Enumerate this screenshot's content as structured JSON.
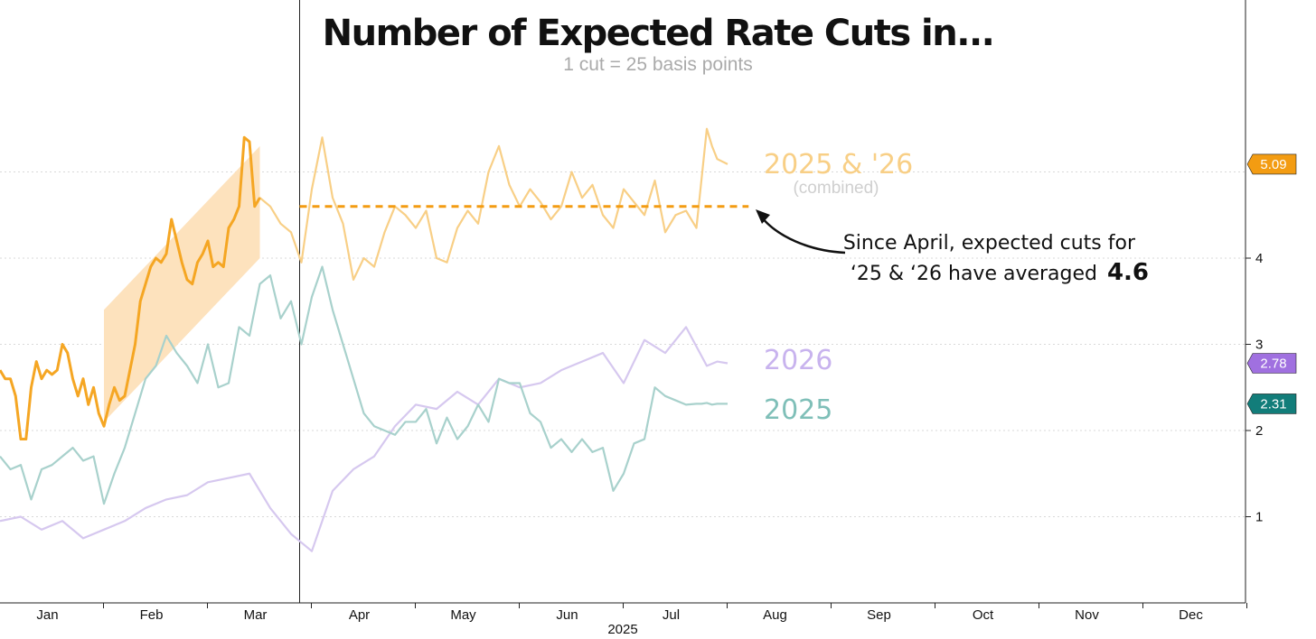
{
  "chart_data": {
    "type": "line",
    "title": "Number of Expected Rate Cuts in...",
    "subtitle": "1 cut = 25 basis points",
    "year_label": "2025",
    "months": [
      "Jan",
      "Feb",
      "Mar",
      "Apr",
      "May",
      "Jun",
      "Jul",
      "Aug",
      "Sep",
      "Oct",
      "Nov",
      "Dec"
    ],
    "y_ticks": [
      1,
      2,
      3,
      4
    ],
    "ylim": [
      0,
      7
    ],
    "xlim": [
      0,
      12
    ],
    "highlight_end": 2.5,
    "average_line": {
      "value": 4.6,
      "x_start": 2.5,
      "x_end": 6.75
    },
    "band": {
      "x_start": 1.0,
      "x_end": 2.5,
      "y_low_start": 2.1,
      "y_high_start": 3.4,
      "y_low_end": 4.0,
      "y_high_end": 5.3
    },
    "series": [
      {
        "name": "2025 & '26",
        "sublabel": "(combined)",
        "color": "#f5a623",
        "last_value": "5.09",
        "x": [
          0.0,
          0.05,
          0.1,
          0.15,
          0.2,
          0.25,
          0.3,
          0.35,
          0.4,
          0.45,
          0.5,
          0.55,
          0.6,
          0.65,
          0.7,
          0.75,
          0.8,
          0.85,
          0.9,
          0.95,
          1.0,
          1.05,
          1.1,
          1.15,
          1.2,
          1.25,
          1.3,
          1.35,
          1.4,
          1.45,
          1.5,
          1.55,
          1.6,
          1.65,
          1.7,
          1.75,
          1.8,
          1.85,
          1.9,
          1.95,
          2.0,
          2.05,
          2.1,
          2.15,
          2.2,
          2.25,
          2.3,
          2.35,
          2.4,
          2.45,
          2.5,
          2.6,
          2.7,
          2.8,
          2.9,
          3.0,
          3.1,
          3.2,
          3.3,
          3.4,
          3.5,
          3.6,
          3.7,
          3.8,
          3.9,
          4.0,
          4.1,
          4.2,
          4.3,
          4.4,
          4.5,
          4.6,
          4.7,
          4.8,
          4.9,
          5.0,
          5.1,
          5.2,
          5.3,
          5.4,
          5.5,
          5.6,
          5.7,
          5.8,
          5.9,
          6.0,
          6.1,
          6.2,
          6.3,
          6.4,
          6.5,
          6.6,
          6.7,
          6.8,
          6.85,
          6.9,
          7.0
        ],
        "values": [
          2.7,
          2.6,
          2.6,
          2.4,
          1.9,
          1.9,
          2.5,
          2.8,
          2.6,
          2.7,
          2.65,
          2.7,
          3.0,
          2.9,
          2.6,
          2.4,
          2.6,
          2.3,
          2.5,
          2.2,
          2.05,
          2.3,
          2.5,
          2.35,
          2.4,
          2.7,
          3.0,
          3.5,
          3.7,
          3.9,
          4.0,
          3.95,
          4.05,
          4.45,
          4.2,
          3.95,
          3.75,
          3.7,
          3.95,
          4.05,
          4.2,
          3.9,
          3.95,
          3.9,
          4.35,
          4.45,
          4.6,
          5.4,
          5.35,
          4.6,
          4.7,
          4.6,
          4.4,
          4.3,
          3.95,
          4.8,
          5.4,
          4.7,
          4.4,
          3.75,
          4.0,
          3.9,
          4.3,
          4.6,
          4.5,
          4.35,
          4.55,
          4.0,
          3.95,
          4.35,
          4.55,
          4.4,
          5.0,
          5.3,
          4.85,
          4.6,
          4.8,
          4.65,
          4.45,
          4.6,
          5.0,
          4.7,
          4.85,
          4.5,
          4.35,
          4.8,
          4.65,
          4.5,
          4.9,
          4.3,
          4.5,
          4.55,
          4.35,
          5.5,
          5.3,
          5.15,
          5.09
        ]
      },
      {
        "name": "2026",
        "color": "#a78bdb",
        "last_value": "2.78",
        "x": [
          0.0,
          0.2,
          0.4,
          0.6,
          0.8,
          1.0,
          1.2,
          1.4,
          1.6,
          1.8,
          2.0,
          2.2,
          2.4,
          2.6,
          2.8,
          3.0,
          3.2,
          3.4,
          3.6,
          3.8,
          4.0,
          4.2,
          4.4,
          4.6,
          4.8,
          5.0,
          5.2,
          5.4,
          5.6,
          5.8,
          6.0,
          6.2,
          6.4,
          6.6,
          6.8,
          6.9,
          7.0
        ],
        "values": [
          0.95,
          1.0,
          0.85,
          0.95,
          0.75,
          0.85,
          0.95,
          1.1,
          1.2,
          1.25,
          1.4,
          1.45,
          1.5,
          1.1,
          0.8,
          0.6,
          1.3,
          1.55,
          1.7,
          2.05,
          2.3,
          2.25,
          2.45,
          2.3,
          2.6,
          2.5,
          2.55,
          2.7,
          2.8,
          2.9,
          2.55,
          3.05,
          2.9,
          3.2,
          2.75,
          2.8,
          2.78
        ]
      },
      {
        "name": "2025",
        "color": "#5fada6",
        "last_value": "2.31",
        "x": [
          0.0,
          0.1,
          0.2,
          0.3,
          0.4,
          0.5,
          0.6,
          0.7,
          0.8,
          0.9,
          1.0,
          1.1,
          1.2,
          1.3,
          1.4,
          1.5,
          1.6,
          1.7,
          1.8,
          1.9,
          2.0,
          2.1,
          2.2,
          2.3,
          2.4,
          2.5,
          2.6,
          2.7,
          2.8,
          2.9,
          3.0,
          3.1,
          3.2,
          3.3,
          3.4,
          3.5,
          3.6,
          3.7,
          3.8,
          3.9,
          4.0,
          4.1,
          4.2,
          4.3,
          4.4,
          4.5,
          4.6,
          4.7,
          4.8,
          4.9,
          5.0,
          5.1,
          5.2,
          5.3,
          5.4,
          5.5,
          5.6,
          5.7,
          5.8,
          5.9,
          6.0,
          6.1,
          6.2,
          6.3,
          6.4,
          6.5,
          6.6,
          6.7,
          6.75,
          6.8,
          6.85,
          6.9,
          7.0
        ],
        "values": [
          1.7,
          1.55,
          1.6,
          1.2,
          1.55,
          1.6,
          1.7,
          1.8,
          1.65,
          1.7,
          1.15,
          1.5,
          1.8,
          2.2,
          2.6,
          2.75,
          3.1,
          2.9,
          2.75,
          2.55,
          3.0,
          2.5,
          2.55,
          3.2,
          3.1,
          3.7,
          3.8,
          3.3,
          3.5,
          3.0,
          3.55,
          3.9,
          3.4,
          3.0,
          2.6,
          2.2,
          2.05,
          2.0,
          1.95,
          2.1,
          2.1,
          2.25,
          1.85,
          2.15,
          1.9,
          2.05,
          2.3,
          2.1,
          2.6,
          2.55,
          2.55,
          2.2,
          2.1,
          1.8,
          1.9,
          1.75,
          1.9,
          1.75,
          1.8,
          1.3,
          1.5,
          1.85,
          1.9,
          2.5,
          2.4,
          2.35,
          2.3,
          2.31,
          2.31,
          2.32,
          2.3,
          2.31,
          2.31
        ]
      }
    ],
    "annotation": {
      "line1": "Since April, expected cuts for",
      "line2": "‘25 & ‘26 have averaged",
      "value": "4.6"
    }
  }
}
